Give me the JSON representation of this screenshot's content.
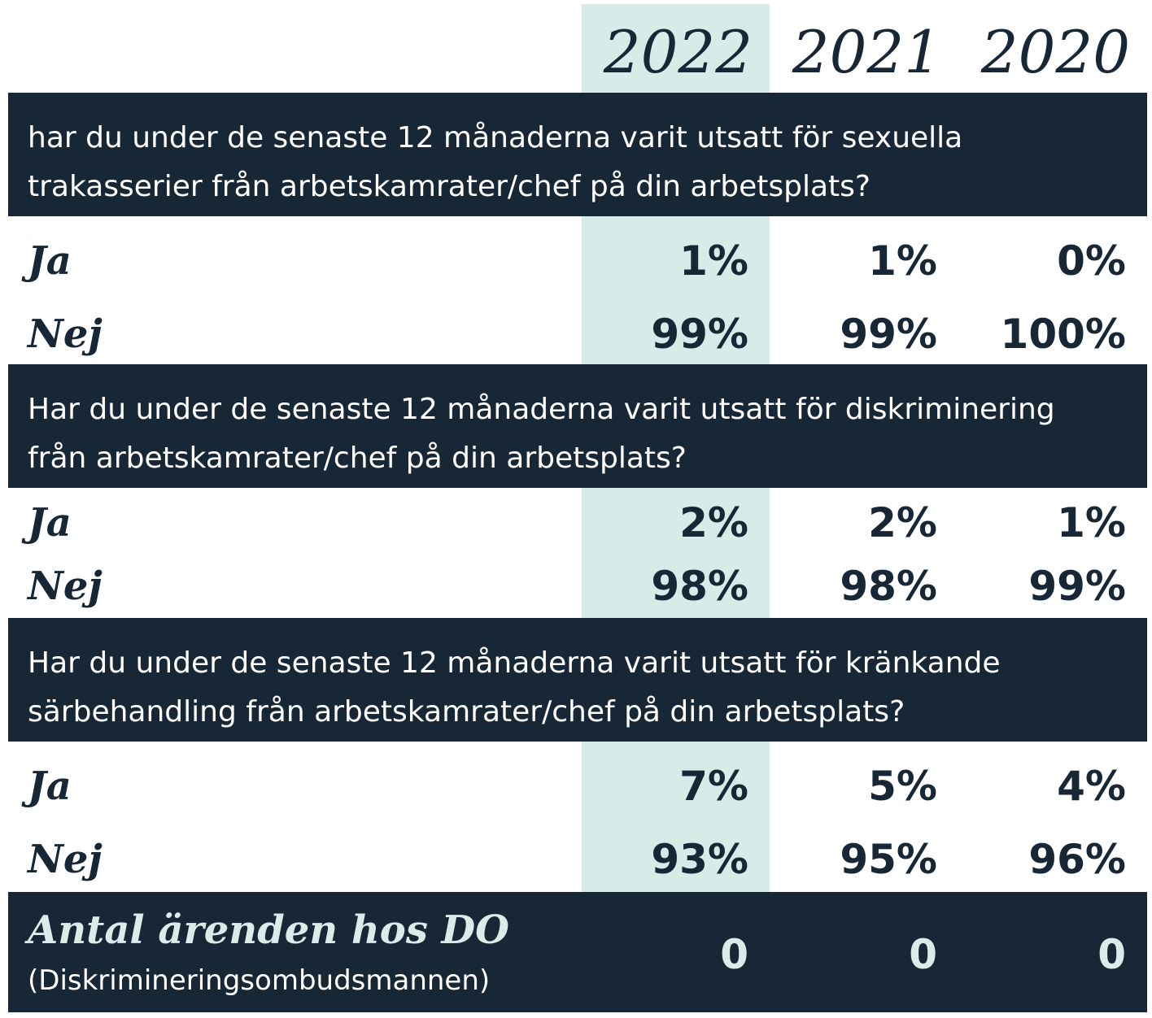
{
  "chart_data": {
    "type": "table",
    "columns": [
      "2022",
      "2021",
      "2020"
    ],
    "highlight_column": "2022",
    "colors": {
      "dark": "#172736",
      "highlight": "#d7ece9",
      "text_light": "#ffffff"
    },
    "sections": [
      {
        "question": "har du under de senaste 12 månaderna varit utsatt för sexuella trakasserier från arbetskamrater/chef på din arbetsplats?",
        "rows": [
          {
            "label": "Ja",
            "values": [
              "1%",
              "1%",
              "0%"
            ]
          },
          {
            "label": "Nej",
            "values": [
              "99%",
              "99%",
              "100%"
            ]
          }
        ]
      },
      {
        "question": "Har du under de senaste 12 månaderna varit utsatt för diskriminering från arbetskamrater/chef på din arbetsplats?",
        "rows": [
          {
            "label": "Ja",
            "values": [
              "2%",
              "2%",
              "1%"
            ]
          },
          {
            "label": "Nej",
            "values": [
              "98%",
              "98%",
              "99%"
            ]
          }
        ]
      },
      {
        "question": "Har du under de senaste 12 månaderna varit utsatt för kränkande särbehandling från arbetskamrater/chef på din arbetsplats?",
        "rows": [
          {
            "label": "Ja",
            "values": [
              "7%",
              "5%",
              "4%"
            ]
          },
          {
            "label": "Nej",
            "values": [
              "93%",
              "95%",
              "96%"
            ]
          }
        ]
      }
    ],
    "footer": {
      "title": "Antal ärenden hos DO",
      "subtitle": "(Diskrimineringsombudsmannen)",
      "values": [
        "0",
        "0",
        "0"
      ]
    }
  }
}
